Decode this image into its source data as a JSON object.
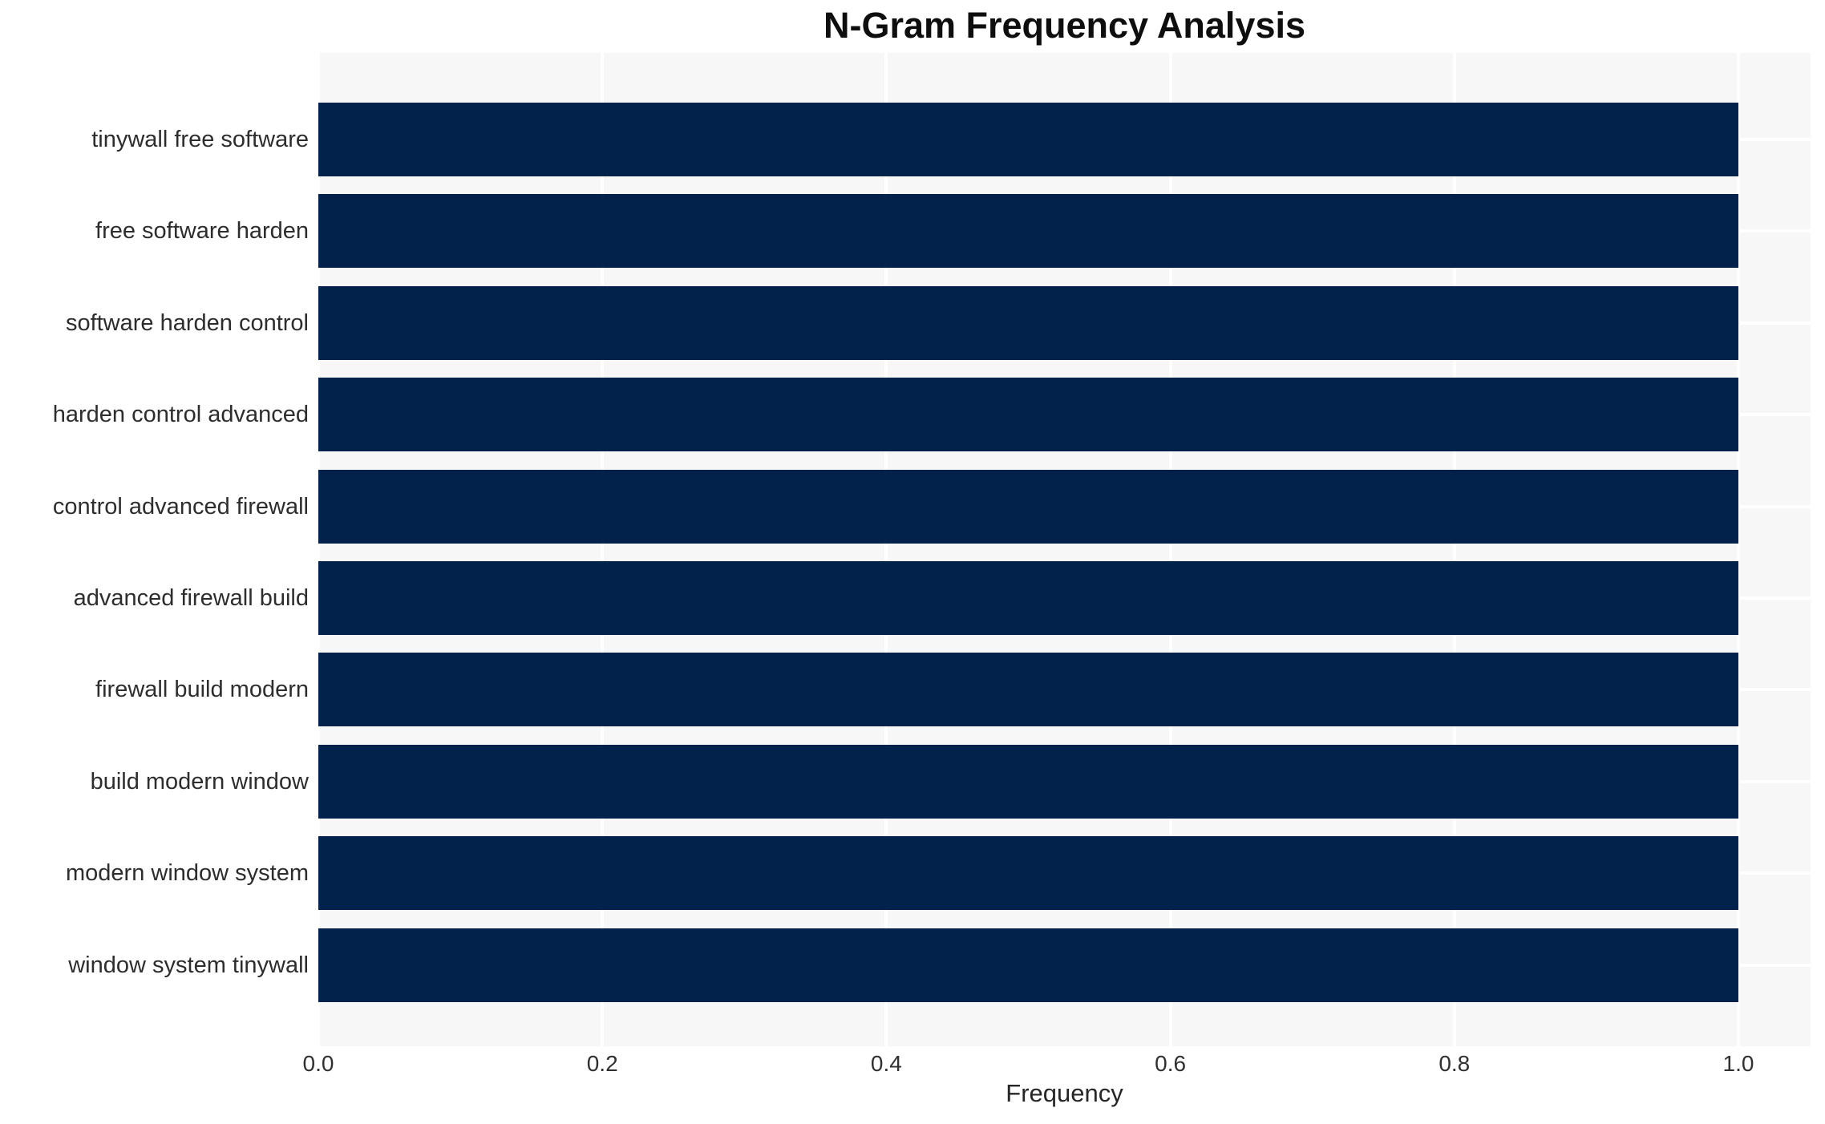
{
  "chart_data": {
    "type": "bar",
    "orientation": "horizontal",
    "title": "N-Gram Frequency Analysis",
    "xlabel": "Frequency",
    "ylabel": "",
    "categories": [
      "tinywall free software",
      "free software harden",
      "software harden control",
      "harden control advanced",
      "control advanced firewall",
      "advanced firewall build",
      "firewall build modern",
      "build modern window",
      "modern window system",
      "window system tinywall"
    ],
    "values": [
      1.0,
      1.0,
      1.0,
      1.0,
      1.0,
      1.0,
      1.0,
      1.0,
      1.0,
      1.0
    ],
    "x_ticks": [
      0.0,
      0.2,
      0.4,
      0.6,
      0.8,
      1.0
    ],
    "x_tick_labels": [
      "0.0",
      "0.2",
      "0.4",
      "0.6",
      "0.8",
      "1.0"
    ],
    "xlim": [
      0,
      1.051
    ],
    "grid": "white vertical gridlines at x ticks and white horizontal gridlines at bar centers, drawn below bars",
    "legend": "none",
    "bar_height_fraction": 0.8,
    "colors": {
      "bar": "#02224C",
      "plot_background": "#F7F7F8",
      "gridline": "#FFFFFF",
      "figure_background": "#FFFFFF",
      "title_text": "#0E0E0E",
      "axis_label_text": "#262626",
      "tick_label_text": "#2D2D2D"
    }
  }
}
